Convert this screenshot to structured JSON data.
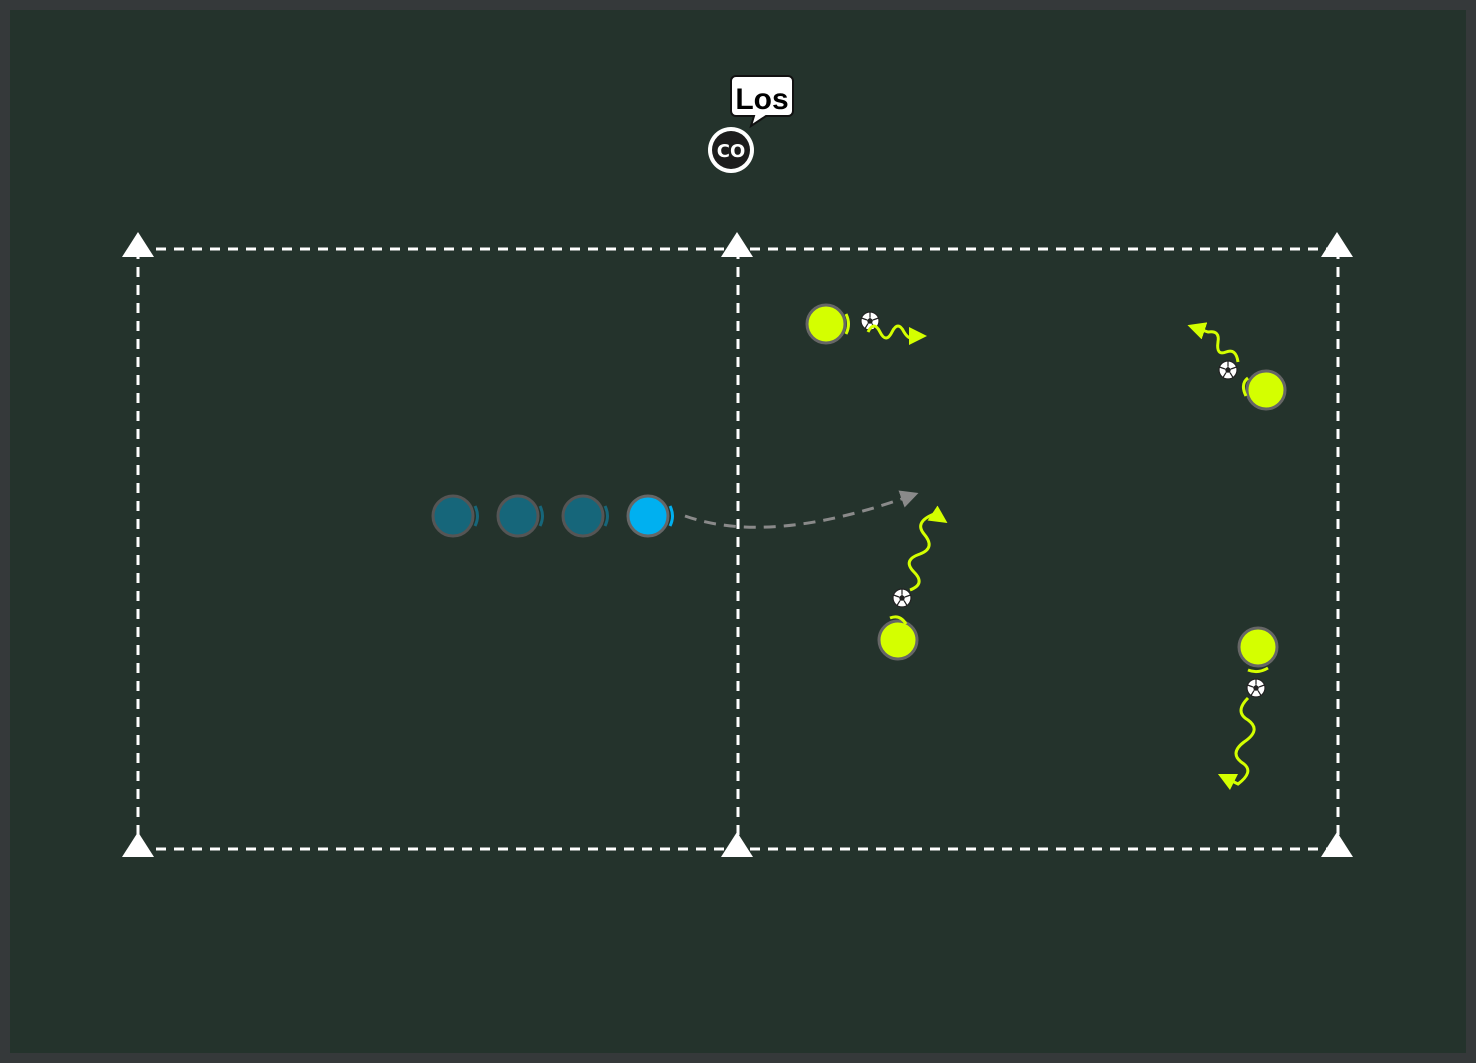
{
  "coach": {
    "label": "Los",
    "badge": "CO"
  },
  "colors": {
    "background": "#24332c",
    "frame": "#35393a",
    "lines": "#ffffff",
    "attacker": "#d4ff00",
    "runner_active": "#00b0f0",
    "runner_waiting": "#16667a",
    "pass_path": "#8a8a8a"
  },
  "markers": {
    "cone_count": 6,
    "icon": "cone-icon"
  },
  "players": {
    "dribblers": 4,
    "queue_waiting": 3,
    "queue_active": 1
  }
}
